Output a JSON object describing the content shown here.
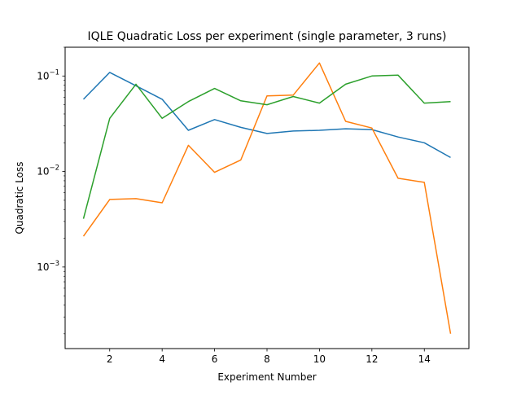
{
  "chart_data": {
    "type": "line",
    "title": "IQLE Quadratic Loss per experiment (single parameter, 3 runs)",
    "xlabel": "Experiment Number",
    "ylabel": "Quadratic Loss",
    "xlim": [
      0.3,
      15.7
    ],
    "ylim": [
      0.00014,
      0.2
    ],
    "yscale": "log",
    "x_ticks": [
      2,
      4,
      6,
      8,
      10,
      12,
      14
    ],
    "y_ticks": [
      {
        "value": 0.001,
        "base": "10",
        "exp": "−3"
      },
      {
        "value": 0.01,
        "base": "10",
        "exp": "−2"
      },
      {
        "value": 0.1,
        "base": "10",
        "exp": "−1"
      }
    ],
    "grid": false,
    "legend": "none",
    "x": [
      1,
      2,
      3,
      4,
      5,
      6,
      7,
      8,
      9,
      10,
      11,
      12,
      13,
      14,
      15
    ],
    "series": [
      {
        "color": "#1f77b4",
        "values": [
          0.057,
          0.109,
          0.079,
          0.057,
          0.027,
          0.035,
          0.029,
          0.025,
          0.0265,
          0.027,
          0.028,
          0.0275,
          0.023,
          0.02,
          0.014
        ]
      },
      {
        "color": "#ff7f0e",
        "values": [
          0.0021,
          0.0051,
          0.0052,
          0.0047,
          0.0188,
          0.0098,
          0.0132,
          0.062,
          0.063,
          0.137,
          0.0335,
          0.0285,
          0.0085,
          0.0077,
          0.0002
        ]
      },
      {
        "color": "#2ca02c",
        "values": [
          0.0032,
          0.036,
          0.082,
          0.036,
          0.054,
          0.074,
          0.055,
          0.05,
          0.061,
          0.052,
          0.082,
          0.1,
          0.102,
          0.052,
          0.054
        ]
      }
    ]
  }
}
